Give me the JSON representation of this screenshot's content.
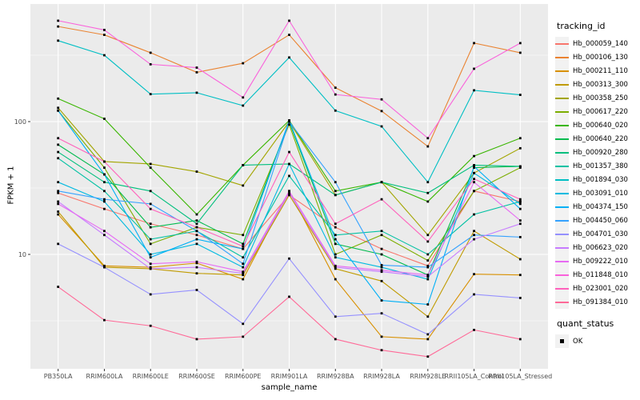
{
  "chart_data": {
    "type": "line",
    "title": "",
    "xlabel": "sample_name",
    "ylabel": "FPKM + 1",
    "legend_title": "tracking_id",
    "legend_position": "right",
    "y_scale": "log10",
    "y_ticks": [
      10,
      100
    ],
    "y_tick_labels": [
      "10",
      "100"
    ],
    "y_minor_ticks": [
      3.162,
      31.62,
      316.2
    ],
    "ylim": [
      1.4,
      770
    ],
    "grid": true,
    "panel_background": "#EBEBEB",
    "grid_color": "#FFFFFF",
    "point_style": "small black filled square (quant_status OK)",
    "categories": [
      "PB350LA",
      "RRIM600LA",
      "RRIM600LE",
      "RRIM600SE",
      "RRIM600PE",
      "RRIM901LA",
      "RRIM928BA",
      "RRIM928LA",
      "RRIM928LE",
      "RRII105LA_Control",
      "RRII105LA_Stressed"
    ],
    "series": [
      {
        "name": "Hb_000059_140",
        "color": "#F8766D",
        "values": [
          29,
          22,
          17,
          14,
          11,
          28,
          16,
          11,
          8.2,
          30,
          25
        ]
      },
      {
        "name": "Hb_000106_130",
        "color": "#EA8331",
        "values": [
          520,
          450,
          330,
          235,
          275,
          450,
          180,
          120,
          65,
          390,
          330
        ]
      },
      {
        "name": "Hb_000211_110",
        "color": "#D89000",
        "values": [
          20,
          8.2,
          8.0,
          8.6,
          6.5,
          30,
          6.5,
          2.4,
          2.3,
          7.1,
          7.0
        ]
      },
      {
        "name": "Hb_000313_300",
        "color": "#C09B00",
        "values": [
          21,
          8.0,
          7.8,
          7.2,
          7.0,
          28,
          7.8,
          6.3,
          3.4,
          15,
          9.2
        ]
      },
      {
        "name": "Hb_000358_250",
        "color": "#A3A500",
        "values": [
          127,
          50,
          48,
          42,
          33,
          100,
          28,
          35,
          14,
          41,
          63
        ]
      },
      {
        "name": "Hb_000617_220",
        "color": "#7CAE00",
        "values": [
          121,
          45,
          12,
          16,
          14,
          95,
          10,
          14,
          9,
          30,
          45
        ]
      },
      {
        "name": "Hb_000640_020",
        "color": "#39B600",
        "values": [
          149,
          105,
          45,
          20,
          47,
          102,
          30,
          35,
          25,
          55,
          75
        ]
      },
      {
        "name": "Hb_000640_220",
        "color": "#00BB4E",
        "values": [
          67,
          40,
          16,
          18,
          12,
          100,
          12,
          10,
          7,
          45,
          46
        ]
      },
      {
        "name": "Hb_000920_280",
        "color": "#00BF7D",
        "values": [
          59,
          35,
          30,
          17,
          47,
          48,
          28,
          35,
          29,
          47,
          46
        ]
      },
      {
        "name": "Hb_001357_380",
        "color": "#00C1A3",
        "values": [
          53,
          30,
          13,
          15,
          9.5,
          39,
          14,
          15,
          10,
          20,
          25
        ]
      },
      {
        "name": "Hb_001894_030",
        "color": "#00BFC4",
        "values": [
          407,
          316,
          161,
          165,
          132,
          304,
          121,
          92,
          35,
          172,
          159
        ]
      },
      {
        "name": "Hb_003091_010",
        "color": "#00BAE0",
        "values": [
          35,
          25,
          10,
          12,
          8,
          48,
          9.5,
          8,
          6.5,
          41,
          24
        ]
      },
      {
        "name": "Hb_004374_150",
        "color": "#00B0F6",
        "values": [
          121,
          40,
          9.5,
          13,
          11,
          102,
          13,
          4.5,
          4.2,
          46,
          22
        ]
      },
      {
        "name": "Hb_004450_060",
        "color": "#35A2FF",
        "values": [
          30,
          26,
          24,
          15,
          8.5,
          100,
          35,
          8.3,
          8.0,
          14,
          13.5
        ]
      },
      {
        "name": "Hb_004701_030",
        "color": "#9590FF",
        "values": [
          12,
          8.0,
          5.0,
          5.4,
          3.0,
          9.3,
          3.4,
          3.6,
          2.5,
          5.0,
          4.7
        ]
      },
      {
        "name": "Hb_006623_020",
        "color": "#C77CFF",
        "values": [
          25,
          14,
          7.8,
          8.0,
          7.2,
          29,
          8.0,
          7.4,
          6.8,
          13,
          17
        ]
      },
      {
        "name": "Hb_009222_010",
        "color": "#E76BF3",
        "values": [
          24,
          15,
          8.5,
          8.8,
          7.4,
          30,
          8.2,
          7.6,
          7.0,
          35,
          18
        ]
      },
      {
        "name": "Hb_011848_010",
        "color": "#FA62DB",
        "values": [
          575,
          490,
          270,
          255,
          152,
          575,
          160,
          147,
          75,
          250,
          390
        ]
      },
      {
        "name": "Hb_023001_020",
        "color": "#FF62BC",
        "values": [
          75,
          50,
          22,
          16,
          11.5,
          59,
          17,
          26,
          12.5,
          37,
          26
        ]
      },
      {
        "name": "Hb_091384_010",
        "color": "#FF6A98",
        "values": [
          5.7,
          3.2,
          2.9,
          2.3,
          2.4,
          4.8,
          2.3,
          1.9,
          1.7,
          2.7,
          2.3
        ]
      }
    ],
    "quant_legend": {
      "title": "quant_status",
      "items": [
        "OK"
      ]
    }
  }
}
